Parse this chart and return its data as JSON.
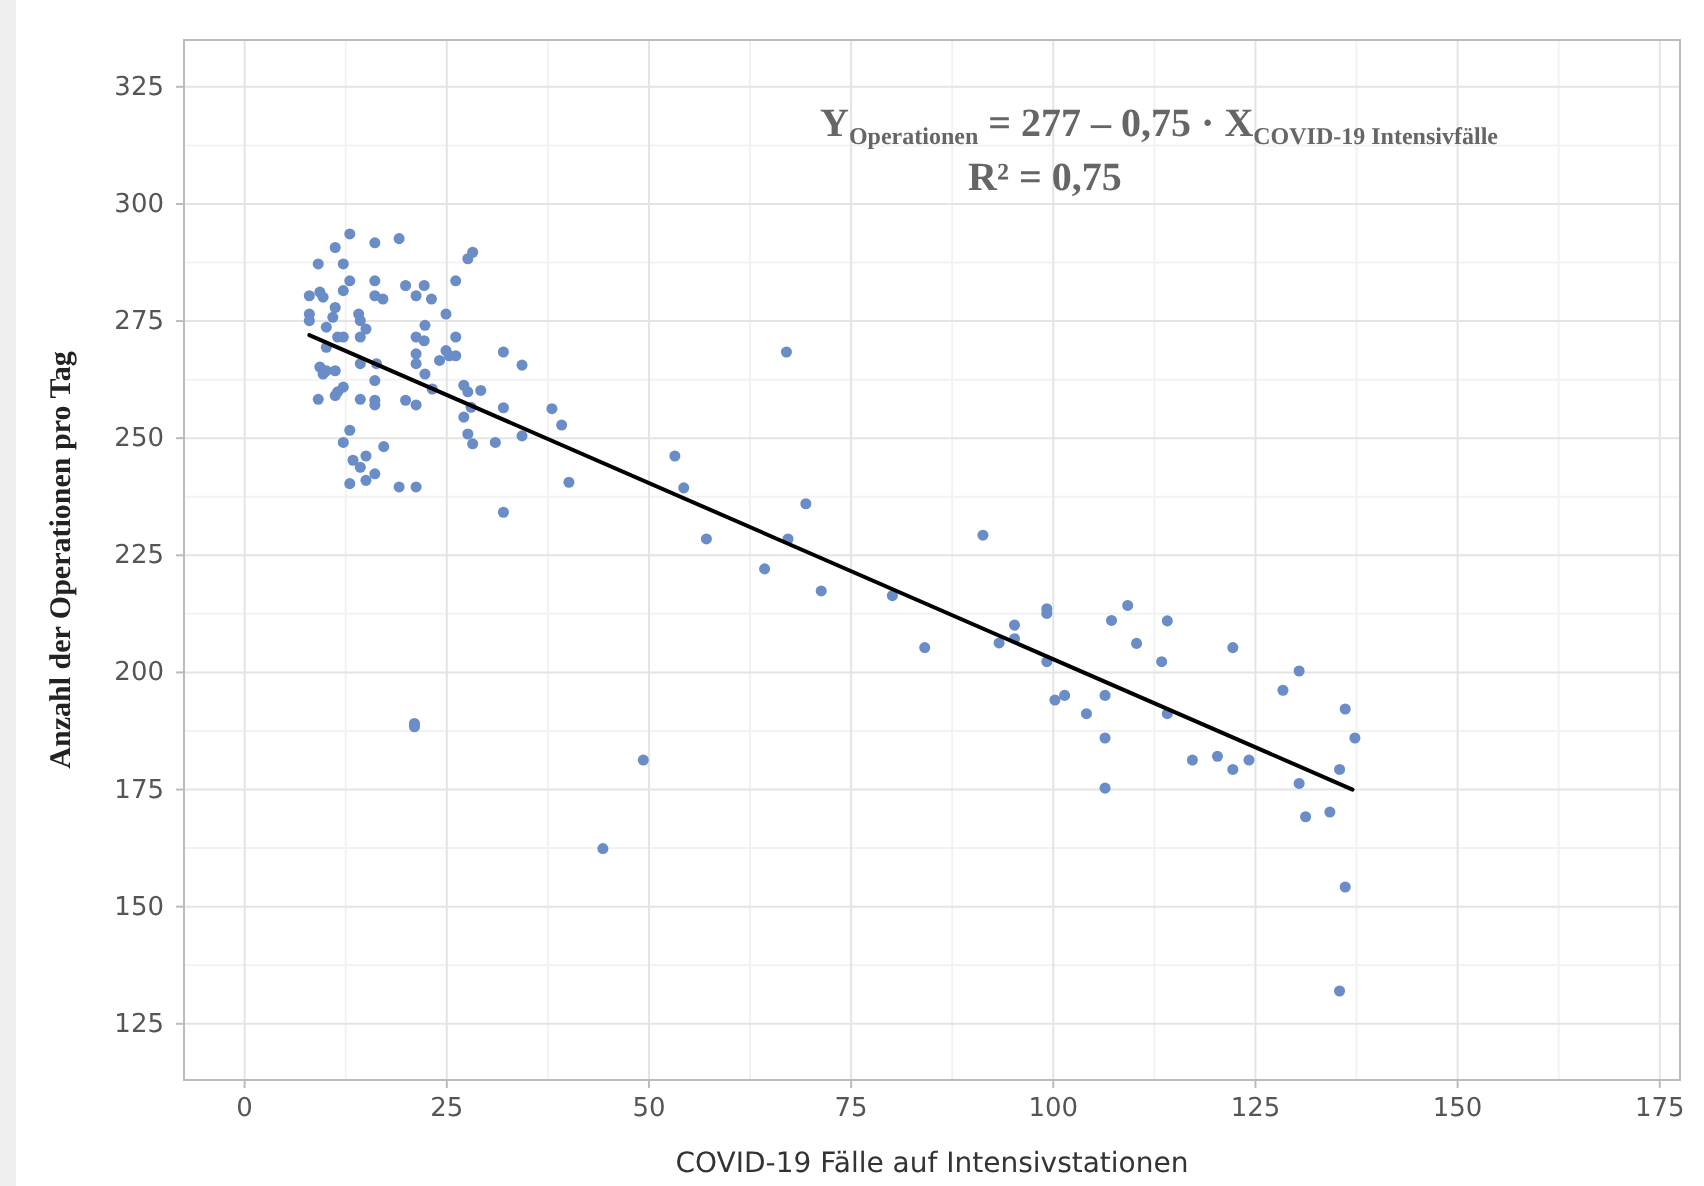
{
  "chart_data": {
    "type": "scatter",
    "xlabel": "COVID-19 Fälle auf Intensivstationen",
    "ylabel": "Anzahl der Operationen pro Tag",
    "xlim": [
      -7.5,
      177.5
    ],
    "xticks": [
      0,
      25,
      50,
      75,
      100,
      125,
      150,
      175
    ],
    "ylim": [
      113,
      335
    ],
    "yticks": [
      125,
      150,
      175,
      200,
      225,
      250,
      275,
      300,
      325
    ],
    "grid": true,
    "annotations": [
      "Y$_{Operationen}$ = 277 – 0,75 · X$_{COVID-19 Intensivfälle}$",
      "R² = 0,75"
    ],
    "series": [
      {
        "marker": "circle",
        "color": "#6a8cc7",
        "x": [
          13.0,
          11.2,
          16.1,
          19.1,
          9.1,
          12.2,
          27.6,
          28.2,
          13.0,
          12.2,
          16.1,
          8.0,
          9.3,
          9.7,
          16.1,
          17.1,
          19.9,
          21.2,
          22.2,
          23.1,
          26.1,
          11.2,
          10.9,
          8.0,
          8.0,
          14.1,
          14.3,
          24.9,
          10.1,
          11.5,
          12.2,
          15.0,
          14.3,
          22.3,
          21.2,
          22.2,
          26.1,
          24.9,
          24.1,
          25.3,
          26.1,
          10.1,
          21.2,
          21.2,
          22.3,
          14.3,
          16.3,
          9.3,
          10.1,
          11.2,
          9.7,
          12.2,
          11.5,
          11.2,
          16.1,
          16.1,
          16.1,
          14.3,
          9.1,
          19.9,
          21.2,
          23.2,
          27.1,
          27.6,
          29.2,
          32.0,
          34.3,
          28.0,
          27.1,
          27.6,
          28.2,
          32.0,
          31.0,
          38.0,
          39.2,
          34.3,
          13.0,
          12.2,
          17.2,
          15.0,
          13.4,
          14.3,
          16.1,
          15.0,
          13.0,
          19.1,
          21.2,
          40.1,
          32.0,
          67.0,
          53.2,
          54.3,
          57.1,
          64.3,
          67.2,
          21.0,
          21.0,
          49.3,
          44.3,
          69.4,
          71.3,
          80.1,
          84.1,
          91.3,
          95.2,
          93.3,
          95.2,
          99.2,
          99.2,
          99.2,
          100.2,
          101.4,
          104.1,
          106.4,
          106.4,
          106.4,
          107.2,
          109.2,
          110.3,
          113.4,
          114.1,
          114.1,
          117.2,
          120.3,
          122.2,
          124.2,
          122.2,
          128.4,
          130.4,
          130.4,
          131.2,
          134.2,
          135.4,
          136.1,
          137.3,
          136.1,
          135.4
        ],
        "values": [
          293.6,
          290.7,
          291.7,
          292.6,
          287.2,
          287.2,
          288.3,
          289.7,
          283.6,
          281.5,
          283.6,
          280.4,
          281.2,
          280.1,
          280.4,
          279.7,
          282.6,
          280.4,
          282.6,
          279.7,
          283.6,
          277.9,
          275.8,
          276.5,
          275.1,
          276.5,
          275.1,
          276.5,
          273.7,
          271.6,
          271.6,
          273.3,
          271.6,
          274.1,
          271.6,
          270.8,
          271.6,
          268.7,
          266.6,
          267.6,
          267.6,
          269.4,
          268.0,
          265.9,
          263.7,
          265.9,
          265.9,
          265.2,
          264.4,
          264.4,
          263.7,
          260.9,
          259.9,
          259.1,
          262.3,
          258.1,
          257.1,
          258.3,
          258.3,
          258.1,
          257.1,
          260.5,
          261.3,
          259.9,
          260.2,
          268.4,
          265.6,
          256.6,
          254.5,
          250.9,
          248.8,
          256.5,
          249.1,
          256.3,
          252.8,
          250.5,
          251.7,
          249.1,
          248.2,
          246.2,
          245.3,
          243.8,
          242.4,
          241.0,
          240.3,
          239.6,
          239.6,
          240.6,
          234.2,
          268.4,
          246.2,
          239.4,
          228.5,
          222.1,
          228.5,
          189.1,
          188.4,
          181.3,
          162.4,
          236.0,
          217.4,
          216.4,
          205.3,
          229.3,
          210.1,
          206.3,
          207.2,
          213.6,
          212.6,
          202.3,
          194.1,
          195.1,
          191.2,
          195.1,
          186.0,
          175.3,
          211.1,
          214.3,
          206.2,
          202.3,
          211.0,
          191.2,
          181.3,
          182.1,
          179.3,
          181.3,
          205.3,
          196.2,
          200.3,
          176.3,
          169.2,
          170.2,
          179.3,
          192.2,
          186.0,
          154.2,
          132.0
        ]
      },
      {
        "type": "line",
        "color": "#000000",
        "x": [
          8.0,
          137.0
        ],
        "values": [
          272,
          175
        ]
      }
    ]
  }
}
